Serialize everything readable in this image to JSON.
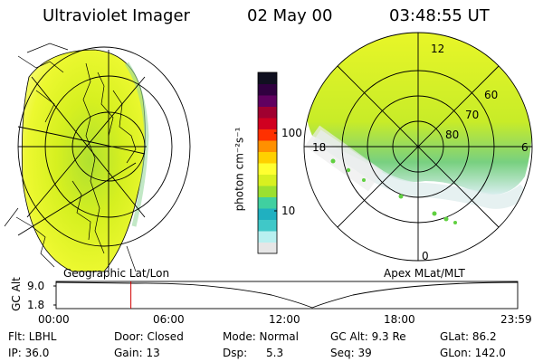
{
  "header": {
    "instrument": "Ultraviolet Imager",
    "date": "02 May 00",
    "time": "03:48:55 UT"
  },
  "panels": {
    "left_label": "Geographic Lat/Lon",
    "right_label": "Apex MLat/MLT"
  },
  "polar_plot": {
    "mlt_labels": {
      "top": "12",
      "left": "18",
      "right": "6",
      "bottom": "0"
    },
    "lat_labels": [
      "60",
      "70",
      "80"
    ]
  },
  "colorbar": {
    "unit_label": "photon cm⁻²s⁻¹",
    "ticks": [
      "100",
      "10"
    ],
    "colors": [
      "#e6e6e6",
      "#b8f0f0",
      "#40c8c8",
      "#20b0c0",
      "#40d0a0",
      "#9be030",
      "#d8f020",
      "#ffff30",
      "#ffd000",
      "#ff9000",
      "#ff3000",
      "#d00020",
      "#a00030",
      "#600060",
      "#300040",
      "#101020"
    ]
  },
  "altitude_plot": {
    "ylabel": "GC Alt",
    "yticks": [
      "9.0",
      "1.8"
    ],
    "xticks": [
      "00:00",
      "06:00",
      "12:00",
      "18:00",
      "23:59"
    ],
    "current_time_fraction": 0.162,
    "line_color": "#000000",
    "marker_color": "#d00000"
  },
  "status": {
    "flt": "Flt: LBHL",
    "door": "Door: Closed",
    "mode": "Mode: Normal",
    "gc_alt": "GC Alt: 9.3 Re",
    "glat": "GLat: 86.2",
    "ip": "IP: 36.0",
    "gain": "Gain: 13",
    "dsp": "Dsp:",
    "dsp_value": "5.3",
    "seq": "Seq: 39",
    "glon": "GLon: 142.0"
  }
}
